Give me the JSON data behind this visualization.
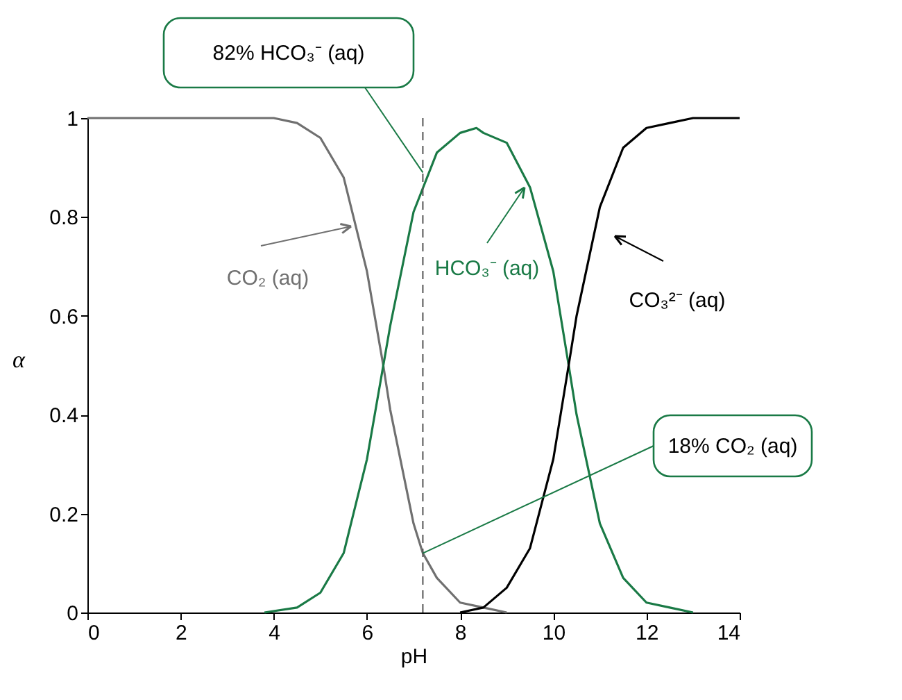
{
  "chart_data": {
    "type": "line",
    "xlabel": "pH",
    "ylabel": "α",
    "xlim": [
      0,
      14
    ],
    "ylim": [
      0,
      1
    ],
    "xticks": [
      0,
      2,
      4,
      6,
      8,
      10,
      12,
      14
    ],
    "yticks": [
      0,
      0.2,
      0.4,
      0.6,
      0.8,
      1
    ],
    "grid": false,
    "marker": "none",
    "line_style": "solid",
    "series": [
      {
        "name": "CO₂ (aq)",
        "color": "#707070",
        "x": [
          0,
          1,
          2,
          3,
          4,
          4.5,
          5,
          5.5,
          6,
          6.35,
          6.5,
          7,
          7.2,
          7.5,
          8,
          8.5,
          9
        ],
        "values": [
          1,
          1,
          1,
          1,
          1,
          0.99,
          0.96,
          0.88,
          0.69,
          0.5,
          0.41,
          0.18,
          0.12,
          0.07,
          0.02,
          0.01,
          0
        ]
      },
      {
        "name": "HCO₃⁻ (aq)",
        "color": "#1a7a46",
        "x": [
          3.8,
          4.5,
          5,
          5.5,
          6,
          6.5,
          7,
          7.5,
          8,
          8.35,
          8.5,
          9,
          9.5,
          10,
          10.33,
          10.5,
          11,
          11.5,
          12,
          12.5,
          13
        ],
        "values": [
          0,
          0.01,
          0.04,
          0.12,
          0.31,
          0.58,
          0.81,
          0.93,
          0.97,
          0.98,
          0.97,
          0.95,
          0.86,
          0.69,
          0.5,
          0.4,
          0.18,
          0.07,
          0.02,
          0.01,
          0
        ]
      },
      {
        "name": "CO₃²⁻ (aq)",
        "color": "#000000",
        "x": [
          8,
          8.5,
          9,
          9.5,
          10,
          10.33,
          10.5,
          11,
          11.5,
          12,
          12.5,
          13,
          14
        ],
        "values": [
          0,
          0.01,
          0.05,
          0.13,
          0.31,
          0.5,
          0.6,
          0.82,
          0.94,
          0.98,
          0.99,
          1,
          1
        ]
      }
    ],
    "ref_lines": [
      {
        "axis": "x",
        "value": 7.2,
        "color": "#555555",
        "line_style": "dashed"
      }
    ],
    "annotations": [
      {
        "text": "82% HCO₃⁻ (aq)",
        "x": 7.2,
        "y": 0.89
      },
      {
        "text": "18% CO₂ (aq)",
        "x": 7.2,
        "y": 0.12
      }
    ]
  }
}
